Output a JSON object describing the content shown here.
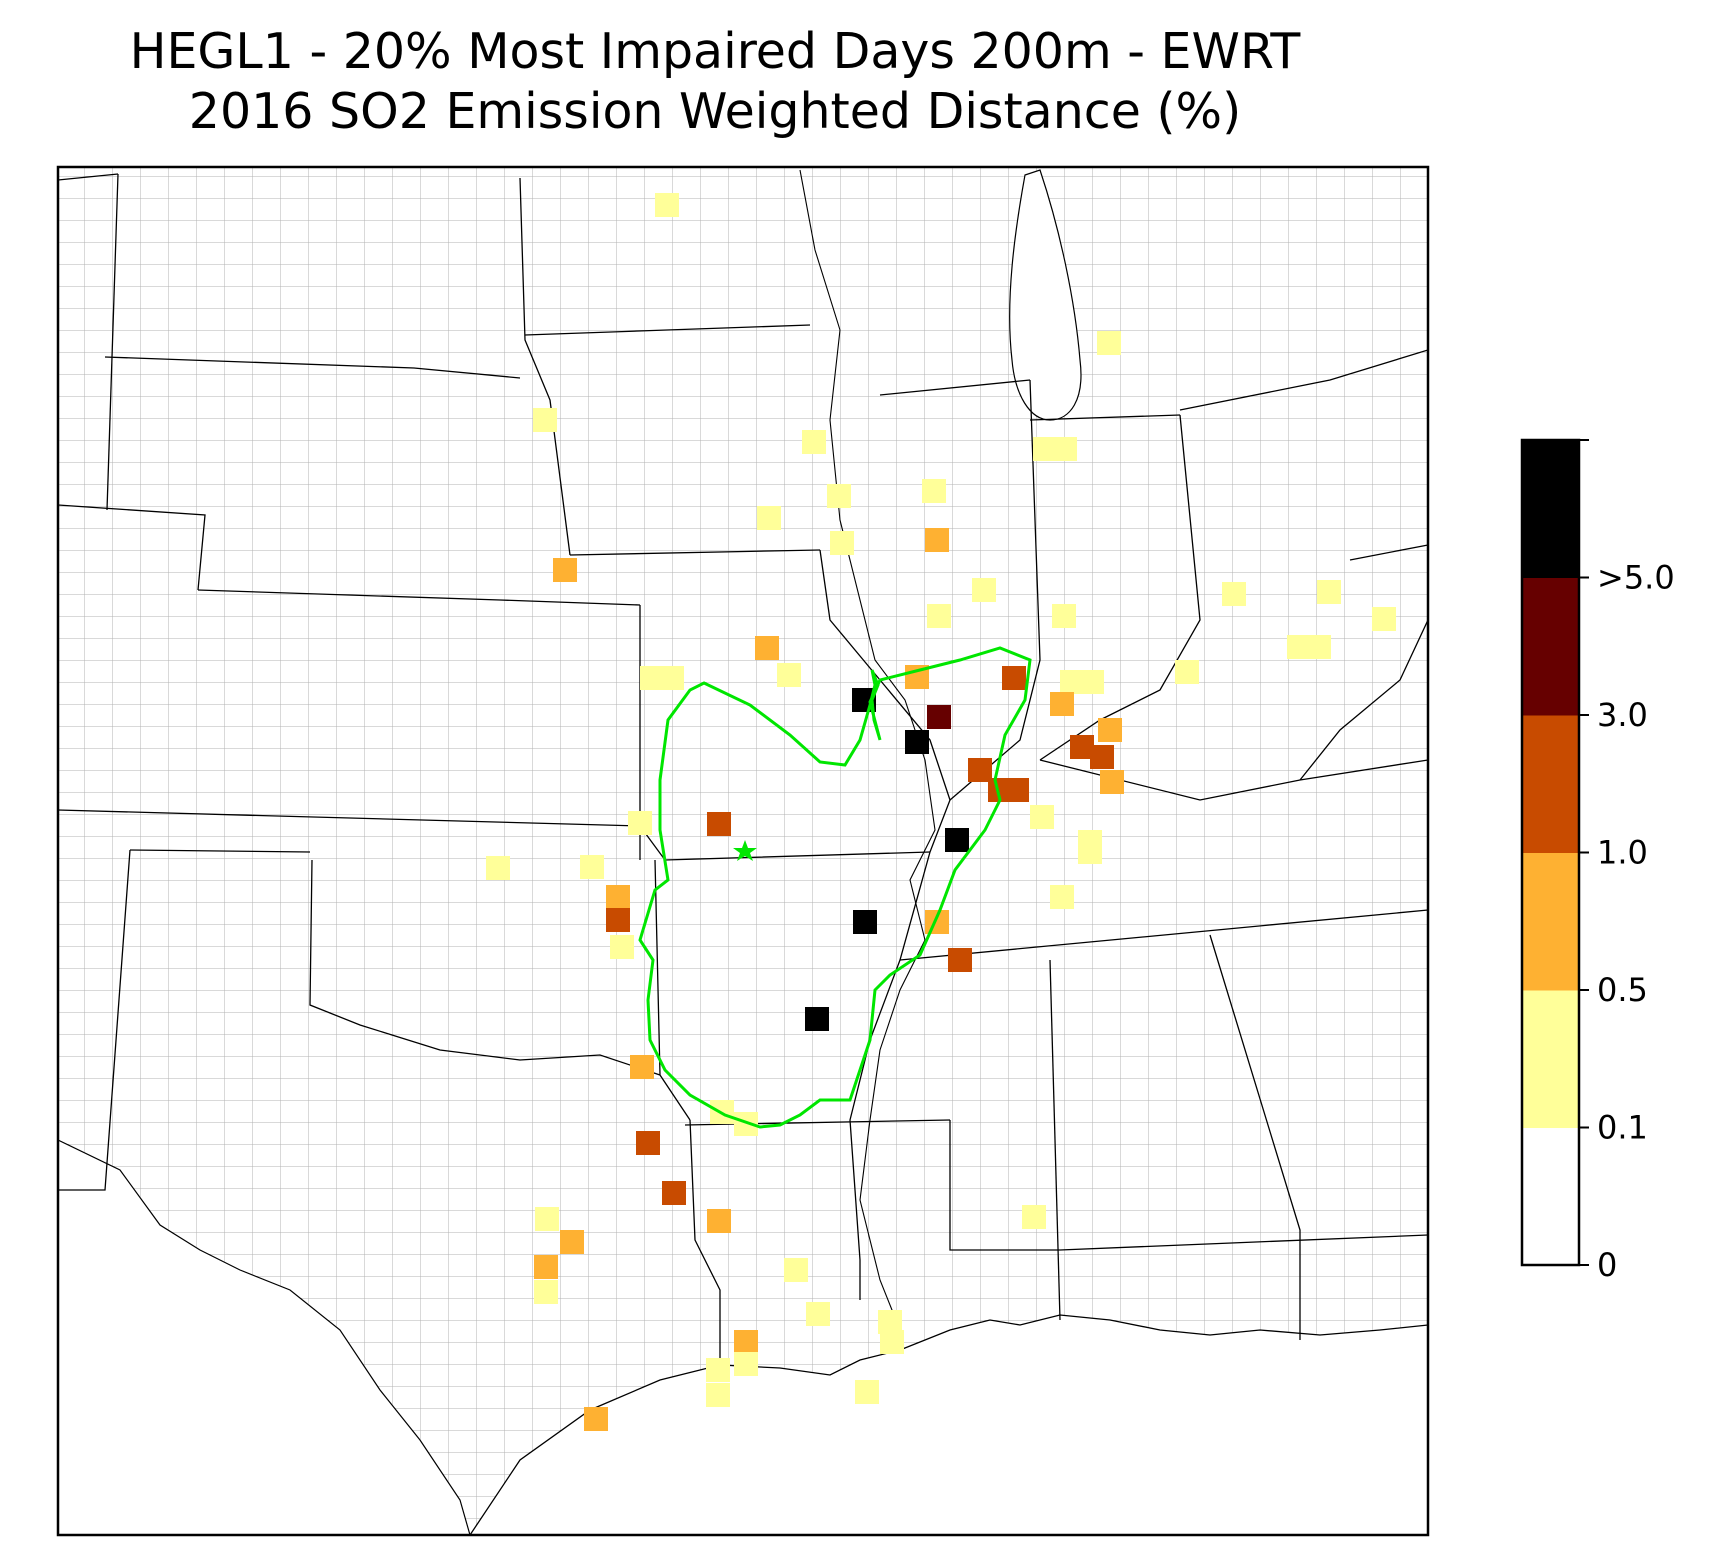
{
  "title": {
    "line1": "HEGL1 - 20% Most Impaired Days 200m - EWRT",
    "line2": "2016 SO2 Emission Weighted Distance (%)"
  },
  "colorbar": {
    "ticks": [
      {
        "label": "0",
        "value": 0
      },
      {
        "label": "0.1",
        "value": 0.1
      },
      {
        "label": "0.5",
        "value": 0.5
      },
      {
        "label": "1.0",
        "value": 1.0
      },
      {
        "label": "3.0",
        "value": 3.0
      },
      {
        "label": ">5.0",
        "value": 5.0
      }
    ],
    "bins": [
      {
        "lo": 0,
        "hi": 0.1,
        "color": "#ffffff"
      },
      {
        "lo": 0.1,
        "hi": 0.5,
        "color": "#ffff99"
      },
      {
        "lo": 0.5,
        "hi": 1.0,
        "color": "#feb132"
      },
      {
        "lo": 1.0,
        "hi": 3.0,
        "color": "#c84b00"
      },
      {
        "lo": 3.0,
        "hi": 5.0,
        "color": "#660000"
      },
      {
        "lo": 5.0,
        "hi": null,
        "color": "#000000"
      }
    ]
  },
  "colors": {
    "trajectory": "#00e600",
    "site_marker": "#00e600",
    "county_lines": "#a6a6a6",
    "state_lines": "#000000"
  }
}
